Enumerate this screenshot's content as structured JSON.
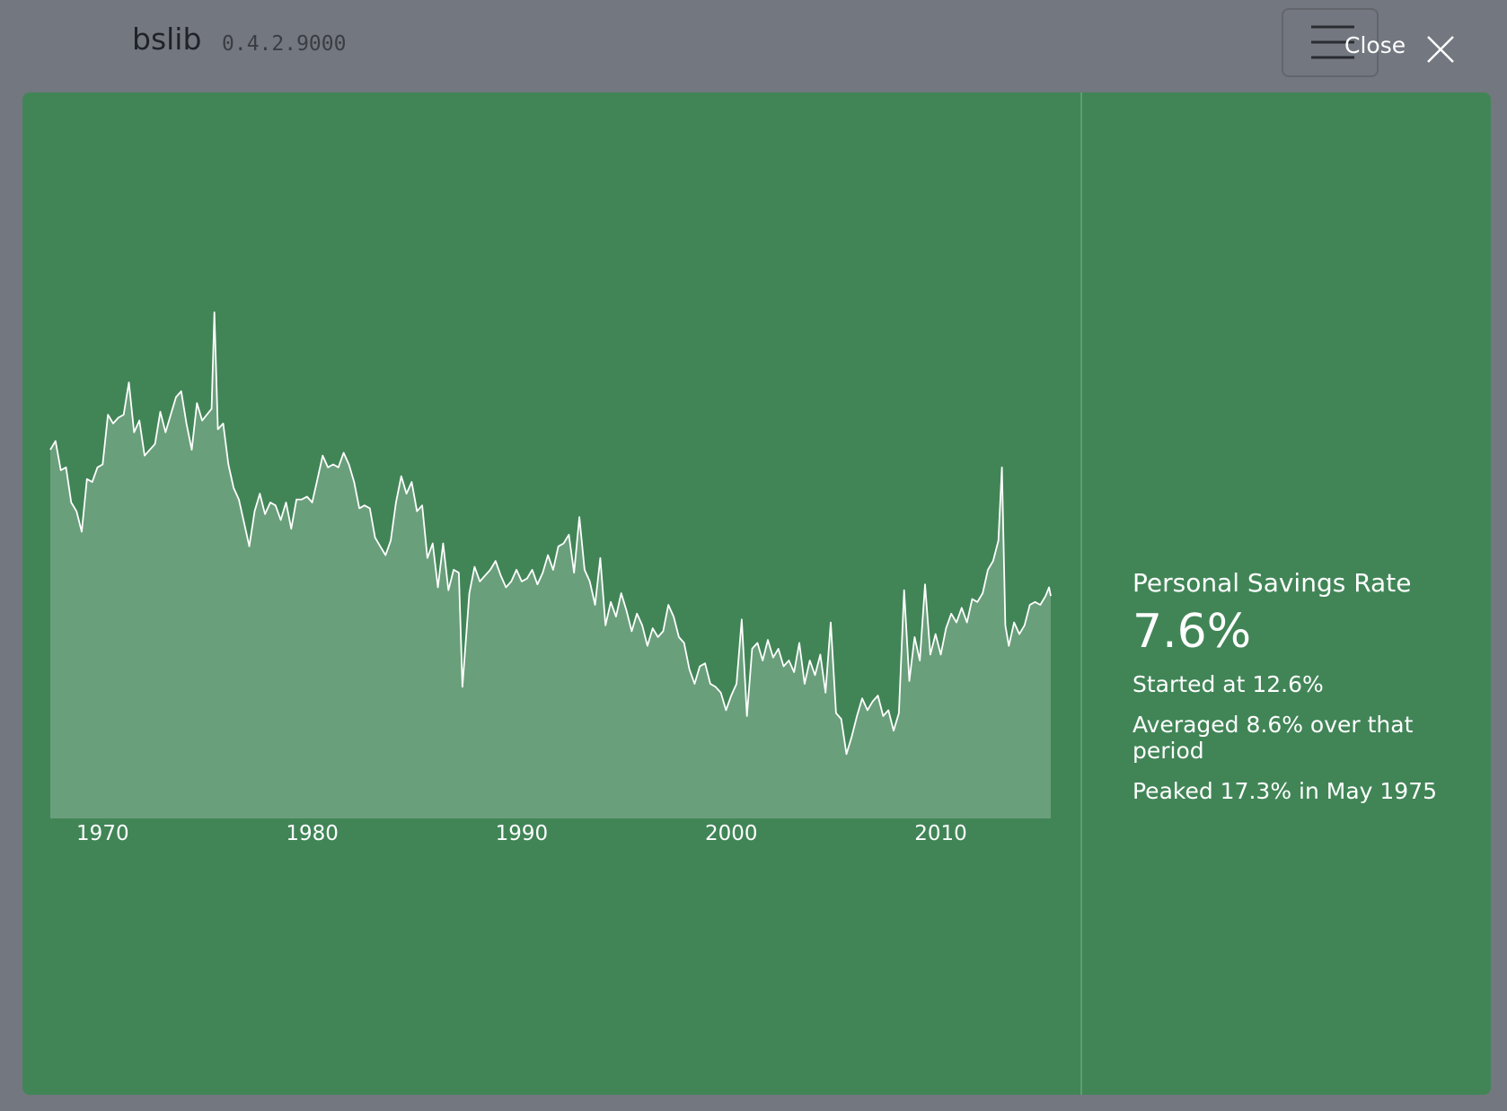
{
  "header": {
    "title": "bslib",
    "version": "0.4.2.9000",
    "close": "Close"
  },
  "value_box": {
    "title": "Personal Savings Rate",
    "value": "7.6%",
    "lines": [
      "Started at 12.6%",
      "Averaged 8.6% over that period",
      "Peaked 17.3% in May 1975"
    ]
  },
  "chart_data": {
    "type": "area",
    "color": "#ffffff",
    "xlim": [
      1967.5,
      2015.25
    ],
    "ylim": [
      0,
      17.3
    ],
    "xticks": [
      1970,
      1980,
      1990,
      2000,
      2010
    ],
    "x": [
      1967.5,
      1967.75,
      1968,
      1968.25,
      1968.5,
      1968.75,
      1969,
      1969.25,
      1969.5,
      1969.75,
      1970,
      1970.25,
      1970.5,
      1970.75,
      1971,
      1971.25,
      1971.5,
      1971.75,
      1972,
      1972.25,
      1972.5,
      1972.75,
      1973,
      1973.25,
      1973.5,
      1973.75,
      1974,
      1974.25,
      1974.5,
      1974.75,
      1975.2,
      1975.33,
      1975.5,
      1975.75,
      1976,
      1976.25,
      1976.5,
      1976.75,
      1977,
      1977.25,
      1977.5,
      1977.75,
      1978,
      1978.25,
      1978.5,
      1978.75,
      1979,
      1979.25,
      1979.5,
      1979.75,
      1980,
      1980.25,
      1980.5,
      1980.75,
      1981,
      1981.25,
      1981.5,
      1981.75,
      1982,
      1982.25,
      1982.5,
      1982.75,
      1983,
      1983.25,
      1983.5,
      1983.75,
      1984,
      1984.25,
      1984.5,
      1984.75,
      1985,
      1985.25,
      1985.5,
      1985.75,
      1986,
      1986.25,
      1986.5,
      1986.75,
      1987,
      1987.17,
      1987.5,
      1987.75,
      1988,
      1988.25,
      1988.5,
      1988.75,
      1989,
      1989.25,
      1989.5,
      1989.75,
      1990,
      1990.25,
      1990.5,
      1990.75,
      1991,
      1991.25,
      1991.5,
      1991.75,
      1992,
      1992.25,
      1992.5,
      1992.75,
      1993,
      1993.25,
      1993.5,
      1993.75,
      1994,
      1994.25,
      1994.5,
      1994.75,
      1995,
      1995.25,
      1995.5,
      1995.75,
      1996,
      1996.25,
      1996.5,
      1996.75,
      1997,
      1997.25,
      1997.5,
      1997.75,
      1998,
      1998.25,
      1998.5,
      1998.75,
      1999,
      1999.25,
      1999.5,
      1999.75,
      2000,
      2000.25,
      2000.5,
      2000.75,
      2001,
      2001.25,
      2001.5,
      2001.75,
      2002,
      2002.25,
      2002.5,
      2002.75,
      2003,
      2003.25,
      2003.5,
      2003.75,
      2004,
      2004.25,
      2004.5,
      2004.75,
      2005,
      2005.25,
      2005.5,
      2005.75,
      2006,
      2006.25,
      2006.5,
      2006.75,
      2007,
      2007.25,
      2007.5,
      2007.75,
      2008,
      2008.25,
      2008.5,
      2008.75,
      2009,
      2009.25,
      2009.5,
      2009.75,
      2010,
      2010.25,
      2010.5,
      2010.75,
      2011,
      2011.25,
      2011.5,
      2011.75,
      2012,
      2012.25,
      2012.5,
      2012.75,
      2012.92,
      2013.08,
      2013.25,
      2013.5,
      2013.75,
      2014,
      2014.25,
      2014.5,
      2014.75,
      2015,
      2015.17,
      2015.25
    ],
    "values": [
      12.6,
      12.9,
      11.9,
      12.0,
      10.8,
      10.5,
      9.8,
      11.6,
      11.5,
      12.0,
      12.1,
      13.8,
      13.5,
      13.7,
      13.8,
      14.9,
      13.2,
      13.6,
      12.4,
      12.6,
      12.8,
      13.9,
      13.2,
      13.8,
      14.4,
      14.6,
      13.5,
      12.6,
      14.2,
      13.6,
      14.0,
      17.3,
      13.3,
      13.5,
      12.1,
      11.3,
      10.9,
      10.1,
      9.3,
      10.5,
      11.1,
      10.4,
      10.8,
      10.7,
      10.2,
      10.8,
      9.9,
      10.9,
      10.9,
      11.0,
      10.8,
      11.6,
      12.4,
      12.0,
      12.1,
      12.0,
      12.5,
      12.1,
      11.5,
      10.6,
      10.7,
      10.6,
      9.6,
      9.3,
      9.0,
      9.5,
      10.8,
      11.7,
      11.1,
      11.5,
      10.5,
      10.7,
      8.9,
      9.4,
      7.9,
      9.4,
      7.8,
      8.5,
      8.4,
      4.5,
      7.7,
      8.6,
      8.1,
      8.3,
      8.5,
      8.8,
      8.3,
      7.9,
      8.1,
      8.5,
      8.1,
      8.2,
      8.5,
      8.0,
      8.4,
      9.0,
      8.5,
      9.3,
      9.4,
      9.7,
      8.4,
      10.3,
      8.5,
      8.1,
      7.3,
      8.9,
      6.6,
      7.4,
      6.9,
      7.7,
      7.1,
      6.4,
      7.0,
      6.6,
      5.9,
      6.5,
      6.2,
      6.4,
      7.3,
      6.9,
      6.2,
      6.0,
      5.1,
      4.6,
      5.2,
      5.3,
      4.6,
      4.5,
      4.3,
      3.7,
      4.2,
      4.6,
      6.8,
      3.5,
      5.8,
      6.0,
      5.4,
      6.1,
      5.5,
      5.8,
      5.2,
      5.4,
      5.0,
      6.0,
      4.6,
      5.4,
      4.9,
      5.6,
      4.3,
      6.7,
      3.6,
      3.4,
      2.2,
      2.8,
      3.5,
      4.1,
      3.7,
      4.0,
      4.2,
      3.5,
      3.7,
      3.0,
      3.6,
      7.8,
      4.7,
      6.2,
      5.4,
      8.0,
      5.6,
      6.3,
      5.6,
      6.5,
      7.0,
      6.7,
      7.2,
      6.7,
      7.5,
      7.4,
      7.7,
      8.5,
      8.8,
      9.5,
      12.0,
      6.6,
      5.9,
      6.7,
      6.3,
      6.6,
      7.3,
      7.4,
      7.3,
      7.6,
      7.9,
      7.6
    ]
  }
}
